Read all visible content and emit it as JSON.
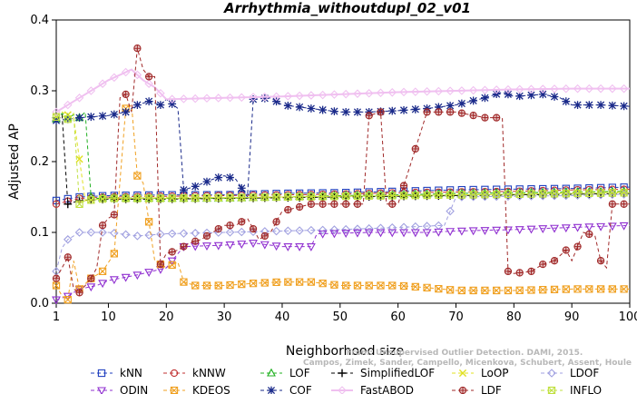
{
  "chart_data": {
    "type": "line",
    "title": "Arrhythmia_withoutdupl_02_v01",
    "xlabel": "Neighborhood size",
    "ylabel": "Adjusted AP",
    "xlim": [
      1,
      100
    ],
    "ylim": [
      0.0,
      0.4
    ],
    "xticks": [
      "1",
      "10",
      "20",
      "30",
      "40",
      "50",
      "60",
      "70",
      "80",
      "90",
      "100"
    ],
    "yticks": [
      "0.0",
      "0.1",
      "0.2",
      "0.3",
      "0.4"
    ],
    "watermark": [
      "From: Unsupervised Outlier Detection. DAMI, 2015.",
      "Campos, Zimek, Sander, Campello, Micenkova, Schubert, Assent, Houle"
    ],
    "legend_position": "bottom",
    "series": [
      {
        "name": "kNN",
        "color": "#1f3fbf",
        "marker": "square",
        "dash": "4,3",
        "points": [
          [
            1,
            0.145
          ],
          [
            5,
            0.15
          ],
          [
            10,
            0.152
          ],
          [
            20,
            0.153
          ],
          [
            30,
            0.153
          ],
          [
            40,
            0.155
          ],
          [
            50,
            0.156
          ],
          [
            60,
            0.158
          ],
          [
            70,
            0.16
          ],
          [
            80,
            0.161
          ],
          [
            90,
            0.162
          ],
          [
            100,
            0.164
          ]
        ]
      },
      {
        "name": "kNNW",
        "color": "#c03030",
        "marker": "circle",
        "dash": "4,3",
        "points": [
          [
            1,
            0.14
          ],
          [
            5,
            0.148
          ],
          [
            10,
            0.15
          ],
          [
            20,
            0.151
          ],
          [
            30,
            0.152
          ],
          [
            40,
            0.153
          ],
          [
            50,
            0.154
          ],
          [
            60,
            0.156
          ],
          [
            70,
            0.157
          ],
          [
            80,
            0.158
          ],
          [
            90,
            0.16
          ],
          [
            100,
            0.161
          ]
        ]
      },
      {
        "name": "LOF",
        "color": "#20b020",
        "marker": "triangle",
        "dash": "4,3",
        "points": [
          [
            1,
            0.26
          ],
          [
            2,
            0.268
          ],
          [
            3,
            0.262
          ],
          [
            4,
            0.266
          ],
          [
            5,
            0.262
          ],
          [
            6,
            0.27
          ],
          [
            7,
            0.15
          ],
          [
            8,
            0.148
          ],
          [
            10,
            0.149
          ],
          [
            20,
            0.148
          ],
          [
            30,
            0.148
          ],
          [
            40,
            0.15
          ],
          [
            50,
            0.152
          ],
          [
            60,
            0.153
          ],
          [
            70,
            0.155
          ],
          [
            80,
            0.156
          ],
          [
            90,
            0.157
          ],
          [
            100,
            0.158
          ]
        ]
      },
      {
        "name": "SimplifiedLOF",
        "color": "#000000",
        "marker": "plus",
        "dash": "4,3",
        "points": [
          [
            1,
            0.262
          ],
          [
            2,
            0.266
          ],
          [
            3,
            0.14
          ],
          [
            5,
            0.145
          ],
          [
            10,
            0.147
          ],
          [
            20,
            0.147
          ],
          [
            30,
            0.148
          ],
          [
            40,
            0.149
          ],
          [
            50,
            0.15
          ],
          [
            60,
            0.151
          ],
          [
            70,
            0.152
          ],
          [
            80,
            0.153
          ],
          [
            90,
            0.154
          ],
          [
            100,
            0.155
          ]
        ]
      },
      {
        "name": "LoOP",
        "color": "#e0e020",
        "marker": "x",
        "dash": "4,3",
        "points": [
          [
            1,
            0.265
          ],
          [
            2,
            0.27
          ],
          [
            4,
            0.262
          ],
          [
            6,
            0.145
          ],
          [
            10,
            0.148
          ],
          [
            20,
            0.149
          ],
          [
            30,
            0.149
          ],
          [
            40,
            0.15
          ],
          [
            50,
            0.151
          ],
          [
            60,
            0.152
          ],
          [
            70,
            0.153
          ],
          [
            80,
            0.154
          ],
          [
            90,
            0.156
          ],
          [
            100,
            0.157
          ]
        ]
      },
      {
        "name": "LDOF",
        "color": "#a0a0e0",
        "marker": "diamond",
        "dash": "4,3",
        "points": [
          [
            1,
            0.045
          ],
          [
            2,
            0.078
          ],
          [
            3,
            0.09
          ],
          [
            5,
            0.1
          ],
          [
            10,
            0.1
          ],
          [
            15,
            0.095
          ],
          [
            20,
            0.098
          ],
          [
            30,
            0.1
          ],
          [
            40,
            0.102
          ],
          [
            50,
            0.104
          ],
          [
            60,
            0.107
          ],
          [
            68,
            0.11
          ],
          [
            70,
            0.15
          ],
          [
            80,
            0.151
          ],
          [
            90,
            0.152
          ],
          [
            100,
            0.154
          ]
        ]
      },
      {
        "name": "ODIN",
        "color": "#9030d0",
        "marker": "triangle-down",
        "dash": "4,3",
        "points": [
          [
            1,
            0.005
          ],
          [
            3,
            0.01
          ],
          [
            5,
            0.02
          ],
          [
            8,
            0.025
          ],
          [
            10,
            0.032
          ],
          [
            15,
            0.04
          ],
          [
            20,
            0.05
          ],
          [
            23,
            0.08
          ],
          [
            30,
            0.082
          ],
          [
            35,
            0.085
          ],
          [
            40,
            0.08
          ],
          [
            45,
            0.08
          ],
          [
            46,
            0.098
          ],
          [
            55,
            0.1
          ],
          [
            65,
            0.1
          ],
          [
            70,
            0.102
          ],
          [
            80,
            0.104
          ],
          [
            90,
            0.107
          ],
          [
            100,
            0.11
          ]
        ]
      },
      {
        "name": "KDEOS",
        "color": "#f0a020",
        "marker": "square-x",
        "dash": "4,3",
        "points": [
          [
            1,
            0.025
          ],
          [
            2,
            0.01
          ],
          [
            3,
            0.005
          ],
          [
            4,
            0.06
          ],
          [
            5,
            0.02
          ],
          [
            7,
            0.035
          ],
          [
            9,
            0.045
          ],
          [
            11,
            0.07
          ],
          [
            13,
            0.275
          ],
          [
            14,
            0.28
          ],
          [
            15,
            0.18
          ],
          [
            16,
            0.17
          ],
          [
            18,
            0.06
          ],
          [
            20,
            0.05
          ],
          [
            22,
            0.058
          ],
          [
            23,
            0.03
          ],
          [
            25,
            0.025
          ],
          [
            30,
            0.025
          ],
          [
            35,
            0.028
          ],
          [
            40,
            0.03
          ],
          [
            45,
            0.03
          ],
          [
            50,
            0.025
          ],
          [
            55,
            0.025
          ],
          [
            60,
            0.025
          ],
          [
            65,
            0.022
          ],
          [
            70,
            0.018
          ],
          [
            80,
            0.018
          ],
          [
            90,
            0.02
          ],
          [
            100,
            0.02
          ]
        ]
      },
      {
        "name": "COF",
        "color": "#1a2a8a",
        "marker": "star",
        "dash": "4,3",
        "points": [
          [
            1,
            0.258
          ],
          [
            5,
            0.262
          ],
          [
            10,
            0.265
          ],
          [
            13,
            0.27
          ],
          [
            15,
            0.28
          ],
          [
            17,
            0.285
          ],
          [
            19,
            0.28
          ],
          [
            20,
            0.288
          ],
          [
            22,
            0.275
          ],
          [
            23,
            0.16
          ],
          [
            25,
            0.165
          ],
          [
            28,
            0.175
          ],
          [
            30,
            0.18
          ],
          [
            32,
            0.175
          ],
          [
            34,
            0.15
          ],
          [
            35,
            0.288
          ],
          [
            38,
            0.29
          ],
          [
            40,
            0.28
          ],
          [
            45,
            0.275
          ],
          [
            50,
            0.27
          ],
          [
            55,
            0.27
          ],
          [
            60,
            0.272
          ],
          [
            65,
            0.275
          ],
          [
            70,
            0.28
          ],
          [
            75,
            0.29
          ],
          [
            78,
            0.298
          ],
          [
            80,
            0.292
          ],
          [
            85,
            0.295
          ],
          [
            88,
            0.29
          ],
          [
            90,
            0.28
          ],
          [
            95,
            0.28
          ],
          [
            100,
            0.278
          ]
        ]
      },
      {
        "name": "FastABOD",
        "color": "#f0c0f0",
        "marker": "diamond",
        "dash": "",
        "points": [
          [
            1,
            0.27
          ],
          [
            5,
            0.29
          ],
          [
            8,
            0.305
          ],
          [
            10,
            0.315
          ],
          [
            14,
            0.33
          ],
          [
            16,
            0.315
          ],
          [
            18,
            0.305
          ],
          [
            20,
            0.288
          ],
          [
            30,
            0.29
          ],
          [
            40,
            0.292
          ],
          [
            50,
            0.295
          ],
          [
            60,
            0.298
          ],
          [
            70,
            0.3
          ],
          [
            80,
            0.302
          ],
          [
            90,
            0.303
          ],
          [
            100,
            0.303
          ]
        ]
      },
      {
        "name": "LDF",
        "color": "#a02828",
        "marker": "circle-plus",
        "dash": "4,3",
        "points": [
          [
            1,
            0.035
          ],
          [
            2,
            0.05
          ],
          [
            3,
            0.065
          ],
          [
            4,
            0.02
          ],
          [
            5,
            0.015
          ],
          [
            7,
            0.035
          ],
          [
            8,
            0.05
          ],
          [
            9,
            0.11
          ],
          [
            10,
            0.12
          ],
          [
            11,
            0.125
          ],
          [
            12,
            0.29
          ],
          [
            13,
            0.295
          ],
          [
            14,
            0.27
          ],
          [
            15,
            0.36
          ],
          [
            16,
            0.33
          ],
          [
            17,
            0.32
          ],
          [
            18,
            0.32
          ],
          [
            19,
            0.055
          ],
          [
            20,
            0.07
          ],
          [
            22,
            0.075
          ],
          [
            24,
            0.085
          ],
          [
            26,
            0.09
          ],
          [
            28,
            0.1
          ],
          [
            30,
            0.11
          ],
          [
            32,
            0.11
          ],
          [
            34,
            0.12
          ],
          [
            36,
            0.09
          ],
          [
            38,
            0.1
          ],
          [
            40,
            0.13
          ],
          [
            45,
            0.14
          ],
          [
            50,
            0.14
          ],
          [
            54,
            0.14
          ],
          [
            55,
            0.265
          ],
          [
            57,
            0.27
          ],
          [
            58,
            0.14
          ],
          [
            60,
            0.14
          ],
          [
            65,
            0.27
          ],
          [
            70,
            0.27
          ],
          [
            75,
            0.262
          ],
          [
            78,
            0.262
          ],
          [
            79,
            0.045
          ],
          [
            80,
            0.042
          ],
          [
            83,
            0.045
          ],
          [
            85,
            0.055
          ],
          [
            87,
            0.06
          ],
          [
            89,
            0.075
          ],
          [
            90,
            0.06
          ],
          [
            92,
            0.1
          ],
          [
            94,
            0.095
          ],
          [
            95,
            0.06
          ],
          [
            96,
            0.05
          ],
          [
            97,
            0.14
          ],
          [
            100,
            0.14
          ]
        ]
      },
      {
        "name": "INFLO",
        "color": "#c0e040",
        "marker": "square-x",
        "dash": "4,3",
        "points": [
          [
            1,
            0.263
          ],
          [
            2,
            0.265
          ],
          [
            3,
            0.26
          ],
          [
            4,
            0.268
          ],
          [
            5,
            0.14
          ],
          [
            6,
            0.145
          ],
          [
            10,
            0.148
          ],
          [
            20,
            0.148
          ],
          [
            30,
            0.149
          ],
          [
            40,
            0.15
          ],
          [
            50,
            0.151
          ],
          [
            60,
            0.152
          ],
          [
            70,
            0.153
          ],
          [
            80,
            0.154
          ],
          [
            90,
            0.155
          ],
          [
            100,
            0.156
          ]
        ]
      }
    ]
  }
}
